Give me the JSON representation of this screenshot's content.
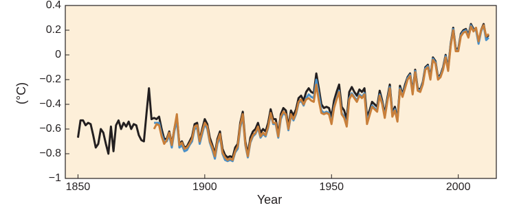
{
  "chart_data": {
    "type": "line",
    "y_label": "(°C)",
    "x_label": "Year",
    "xlim": [
      1845,
      2015
    ],
    "xticks": [
      1850,
      1900,
      1950,
      2000
    ],
    "ylim": [
      -1,
      0.4
    ],
    "yticks": [
      0.4,
      0.2,
      0,
      {
        "value": -0.2,
        "label": "−0.2"
      },
      {
        "value": -0.4,
        "label": "−0.4"
      },
      {
        "value": -0.6,
        "label": "−0.6"
      },
      {
        "value": -0.8,
        "label": "−0.8"
      },
      {
        "value": -1,
        "label": "−1"
      }
    ],
    "background": "#fdefd9",
    "x": [
      1850,
      1851,
      1852,
      1853,
      1854,
      1855,
      1856,
      1857,
      1858,
      1859,
      1860,
      1861,
      1862,
      1863,
      1864,
      1865,
      1866,
      1867,
      1868,
      1869,
      1870,
      1871,
      1872,
      1873,
      1874,
      1875,
      1876,
      1877,
      1878,
      1879,
      1880,
      1881,
      1882,
      1883,
      1884,
      1885,
      1886,
      1887,
      1888,
      1889,
      1890,
      1891,
      1892,
      1893,
      1894,
      1895,
      1896,
      1897,
      1898,
      1899,
      1900,
      1901,
      1902,
      1903,
      1904,
      1905,
      1906,
      1907,
      1908,
      1909,
      1910,
      1911,
      1912,
      1913,
      1914,
      1915,
      1916,
      1917,
      1918,
      1919,
      1920,
      1921,
      1922,
      1923,
      1924,
      1925,
      1926,
      1927,
      1928,
      1929,
      1930,
      1931,
      1932,
      1933,
      1934,
      1935,
      1936,
      1937,
      1938,
      1939,
      1940,
      1941,
      1942,
      1943,
      1944,
      1945,
      1946,
      1947,
      1948,
      1949,
      1950,
      1951,
      1952,
      1953,
      1954,
      1955,
      1956,
      1957,
      1958,
      1959,
      1960,
      1961,
      1962,
      1963,
      1964,
      1965,
      1966,
      1967,
      1968,
      1969,
      1970,
      1971,
      1972,
      1973,
      1974,
      1975,
      1976,
      1977,
      1978,
      1979,
      1980,
      1981,
      1982,
      1983,
      1984,
      1985,
      1986,
      1987,
      1988,
      1989,
      1990,
      1991,
      1992,
      1993,
      1994,
      1995,
      1996,
      1997,
      1998,
      1999,
      2000,
      2001,
      2002,
      2003,
      2004,
      2005,
      2006,
      2007,
      2008,
      2009,
      2010,
      2011,
      2012
    ],
    "series": [
      {
        "color": "#231f20",
        "values": [
          -0.67,
          -0.53,
          -0.53,
          -0.57,
          -0.55,
          -0.56,
          -0.65,
          -0.75,
          -0.72,
          -0.6,
          -0.63,
          -0.72,
          -0.8,
          -0.58,
          -0.78,
          -0.57,
          -0.53,
          -0.6,
          -0.55,
          -0.58,
          -0.54,
          -0.6,
          -0.56,
          -0.57,
          -0.65,
          -0.69,
          -0.7,
          -0.48,
          -0.27,
          -0.52,
          -0.51,
          -0.52,
          -0.5,
          -0.6,
          -0.68,
          -0.68,
          -0.62,
          -0.72,
          -0.6,
          -0.5,
          -0.72,
          -0.7,
          -0.75,
          -0.74,
          -0.7,
          -0.66,
          -0.56,
          -0.55,
          -0.69,
          -0.6,
          -0.52,
          -0.56,
          -0.67,
          -0.73,
          -0.8,
          -0.68,
          -0.62,
          -0.76,
          -0.81,
          -0.83,
          -0.82,
          -0.83,
          -0.75,
          -0.72,
          -0.55,
          -0.46,
          -0.7,
          -0.8,
          -0.67,
          -0.62,
          -0.6,
          -0.55,
          -0.63,
          -0.6,
          -0.62,
          -0.55,
          -0.44,
          -0.52,
          -0.52,
          -0.64,
          -0.48,
          -0.43,
          -0.45,
          -0.58,
          -0.45,
          -0.49,
          -0.44,
          -0.35,
          -0.33,
          -0.37,
          -0.3,
          -0.27,
          -0.3,
          -0.31,
          -0.15,
          -0.27,
          -0.4,
          -0.43,
          -0.42,
          -0.43,
          -0.5,
          -0.37,
          -0.3,
          -0.24,
          -0.42,
          -0.45,
          -0.52,
          -0.3,
          -0.26,
          -0.3,
          -0.33,
          -0.28,
          -0.3,
          -0.27,
          -0.5,
          -0.45,
          -0.38,
          -0.4,
          -0.42,
          -0.29,
          -0.37,
          -0.48,
          -0.35,
          -0.24,
          -0.47,
          -0.42,
          -0.52,
          -0.25,
          -0.32,
          -0.24,
          -0.18,
          -0.15,
          -0.3,
          -0.12,
          -0.27,
          -0.28,
          -0.22,
          -0.1,
          -0.08,
          -0.18,
          -0.02,
          -0.05,
          -0.18,
          -0.16,
          -0.1,
          0.0,
          -0.11,
          0.09,
          0.22,
          0.05,
          0.05,
          0.17,
          0.2,
          0.21,
          0.16,
          0.25,
          0.21,
          0.21,
          0.1,
          0.2,
          0.25,
          0.14,
          0.16
        ]
      },
      {
        "color": "#4a90c8",
        "values": [
          null,
          null,
          null,
          null,
          null,
          null,
          null,
          null,
          null,
          null,
          null,
          null,
          null,
          null,
          null,
          null,
          null,
          null,
          null,
          null,
          null,
          null,
          null,
          null,
          null,
          null,
          null,
          null,
          null,
          null,
          -0.55,
          -0.55,
          -0.55,
          -0.64,
          -0.7,
          -0.7,
          -0.65,
          -0.75,
          -0.62,
          -0.53,
          -0.75,
          -0.73,
          -0.78,
          -0.77,
          -0.73,
          -0.7,
          -0.6,
          -0.59,
          -0.72,
          -0.64,
          -0.56,
          -0.6,
          -0.71,
          -0.77,
          -0.84,
          -0.72,
          -0.66,
          -0.8,
          -0.85,
          -0.86,
          -0.85,
          -0.86,
          -0.79,
          -0.76,
          -0.59,
          -0.5,
          -0.73,
          -0.83,
          -0.71,
          -0.66,
          -0.64,
          -0.59,
          -0.67,
          -0.64,
          -0.66,
          -0.59,
          -0.48,
          -0.56,
          -0.56,
          -0.67,
          -0.52,
          -0.47,
          -0.49,
          -0.61,
          -0.49,
          -0.53,
          -0.48,
          -0.39,
          -0.37,
          -0.41,
          -0.35,
          -0.32,
          -0.34,
          -0.35,
          -0.2,
          -0.32,
          -0.45,
          -0.47,
          -0.46,
          -0.47,
          -0.55,
          -0.42,
          -0.35,
          -0.29,
          -0.47,
          -0.5,
          -0.57,
          -0.35,
          -0.31,
          -0.34,
          -0.37,
          -0.32,
          -0.34,
          -0.31,
          -0.53,
          -0.48,
          -0.41,
          -0.43,
          -0.45,
          -0.32,
          -0.39,
          -0.5,
          -0.37,
          -0.26,
          -0.49,
          -0.44,
          -0.53,
          -0.27,
          -0.33,
          -0.26,
          -0.19,
          -0.16,
          -0.31,
          -0.13,
          -0.28,
          -0.29,
          -0.23,
          -0.11,
          -0.09,
          -0.19,
          -0.03,
          -0.06,
          -0.19,
          -0.17,
          -0.11,
          -0.01,
          -0.12,
          0.08,
          0.21,
          0.04,
          0.04,
          0.16,
          0.19,
          0.2,
          0.15,
          0.24,
          0.2,
          0.2,
          0.09,
          0.19,
          0.24,
          0.12,
          0.14
        ]
      },
      {
        "color": "#c87f3a",
        "values": [
          null,
          null,
          null,
          null,
          null,
          null,
          null,
          null,
          null,
          null,
          null,
          null,
          null,
          null,
          null,
          null,
          null,
          null,
          null,
          null,
          null,
          null,
          null,
          null,
          null,
          null,
          null,
          null,
          null,
          null,
          -0.6,
          -0.56,
          -0.57,
          -0.66,
          -0.72,
          -0.69,
          -0.63,
          -0.73,
          -0.6,
          -0.48,
          -0.73,
          -0.71,
          -0.76,
          -0.75,
          -0.72,
          -0.68,
          -0.58,
          -0.57,
          -0.7,
          -0.62,
          -0.55,
          -0.58,
          -0.7,
          -0.75,
          -0.82,
          -0.7,
          -0.64,
          -0.79,
          -0.83,
          -0.85,
          -0.84,
          -0.85,
          -0.78,
          -0.74,
          -0.57,
          -0.48,
          -0.72,
          -0.82,
          -0.7,
          -0.65,
          -0.63,
          -0.58,
          -0.66,
          -0.63,
          -0.65,
          -0.58,
          -0.47,
          -0.55,
          -0.55,
          -0.66,
          -0.5,
          -0.46,
          -0.48,
          -0.6,
          -0.48,
          -0.52,
          -0.47,
          -0.38,
          -0.36,
          -0.4,
          -0.36,
          -0.35,
          -0.37,
          -0.38,
          -0.24,
          -0.37,
          -0.47,
          -0.48,
          -0.47,
          -0.48,
          -0.56,
          -0.43,
          -0.36,
          -0.3,
          -0.48,
          -0.51,
          -0.58,
          -0.36,
          -0.32,
          -0.35,
          -0.38,
          -0.33,
          -0.35,
          -0.32,
          -0.56,
          -0.49,
          -0.42,
          -0.44,
          -0.46,
          -0.33,
          -0.4,
          -0.51,
          -0.38,
          -0.27,
          -0.5,
          -0.45,
          -0.54,
          -0.28,
          -0.34,
          -0.27,
          -0.2,
          -0.17,
          -0.32,
          -0.14,
          -0.29,
          -0.3,
          -0.24,
          -0.12,
          -0.1,
          -0.2,
          -0.04,
          -0.07,
          -0.2,
          -0.18,
          -0.12,
          -0.02,
          -0.13,
          0.07,
          0.2,
          0.03,
          0.03,
          0.15,
          0.18,
          0.19,
          0.14,
          0.23,
          0.19,
          0.22,
          0.11,
          0.2,
          0.24,
          0.15,
          0.17
        ]
      }
    ]
  }
}
